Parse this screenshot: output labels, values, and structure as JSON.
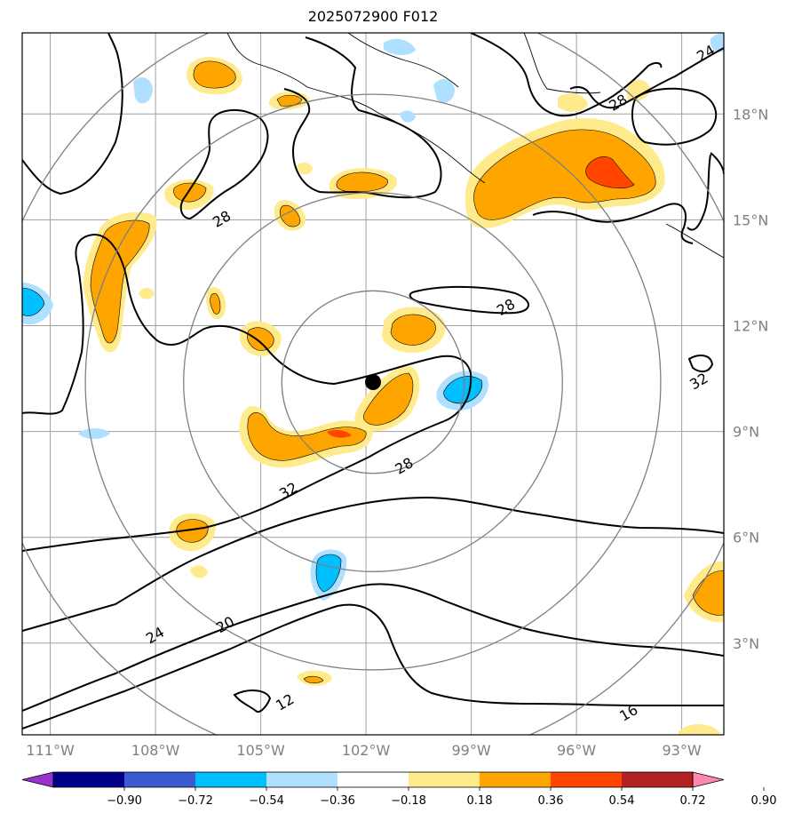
{
  "title": "2025072900 F012",
  "axes": {
    "lon_min": -111.8,
    "lon_max": -91.8,
    "lat_min": 0.4,
    "lat_max": 20.3,
    "lon_ticks": [
      {
        "value": -111,
        "label": "111°W"
      },
      {
        "value": -108,
        "label": "108°W"
      },
      {
        "value": -105,
        "label": "105°W"
      },
      {
        "value": -102,
        "label": "102°W"
      },
      {
        "value": -99,
        "label": "99°W"
      },
      {
        "value": -96,
        "label": "96°W"
      },
      {
        "value": -93,
        "label": "93°W"
      }
    ],
    "lat_ticks": [
      {
        "value": 3,
        "label": "3°N"
      },
      {
        "value": 6,
        "label": "6°N"
      },
      {
        "value": 9,
        "label": "9°N"
      },
      {
        "value": 12,
        "label": "12°N"
      },
      {
        "value": 15,
        "label": "15°N"
      },
      {
        "value": 18,
        "label": "18°N"
      }
    ],
    "grid": true,
    "grid_color": "#a0a0a0"
  },
  "storm_center": {
    "lon": -101.8,
    "lat": 10.4
  },
  "range_rings_deg": [
    2.6,
    5.4,
    8.2,
    11.0
  ],
  "contour_labels": [
    {
      "text": "28",
      "lon": -106.1,
      "lat": 15.0
    },
    {
      "text": "28",
      "lon": -98.0,
      "lat": 12.5
    },
    {
      "text": "28",
      "lon": -94.8,
      "lat": 18.3
    },
    {
      "text": "24",
      "lon": -92.3,
      "lat": 19.7
    },
    {
      "text": "32",
      "lon": -92.5,
      "lat": 10.4
    },
    {
      "text": "32",
      "lon": -104.2,
      "lat": 7.3
    },
    {
      "text": "28",
      "lon": -100.9,
      "lat": 8.0
    },
    {
      "text": "24",
      "lon": -108.0,
      "lat": 3.2
    },
    {
      "text": "20",
      "lon": -106.0,
      "lat": 3.5
    },
    {
      "text": "16",
      "lon": -94.5,
      "lat": 1.0
    },
    {
      "text": "12",
      "lon": -104.3,
      "lat": 1.3
    }
  ],
  "colorbar": {
    "colors": [
      "#9932cc",
      "#00008b",
      "#3b5bd1",
      "#00bfff",
      "#b0e0ff",
      "#ffffff",
      "#ffeb8c",
      "#ffa500",
      "#ff4500",
      "#b22222",
      "#ff88b0"
    ],
    "tick_labels": [
      "−0.90",
      "−0.72",
      "−0.54",
      "−0.36",
      "−0.18",
      "0.18",
      "0.36",
      "0.54",
      "0.72",
      "0.90"
    ]
  },
  "legend_colors": {
    "light_yellow": "#ffeb8c",
    "orange": "#ffa500",
    "red_orange": "#ff4500",
    "crimson": "#b22222",
    "light_blue": "#b0e0ff",
    "deep_sky_blue": "#00bfff"
  }
}
